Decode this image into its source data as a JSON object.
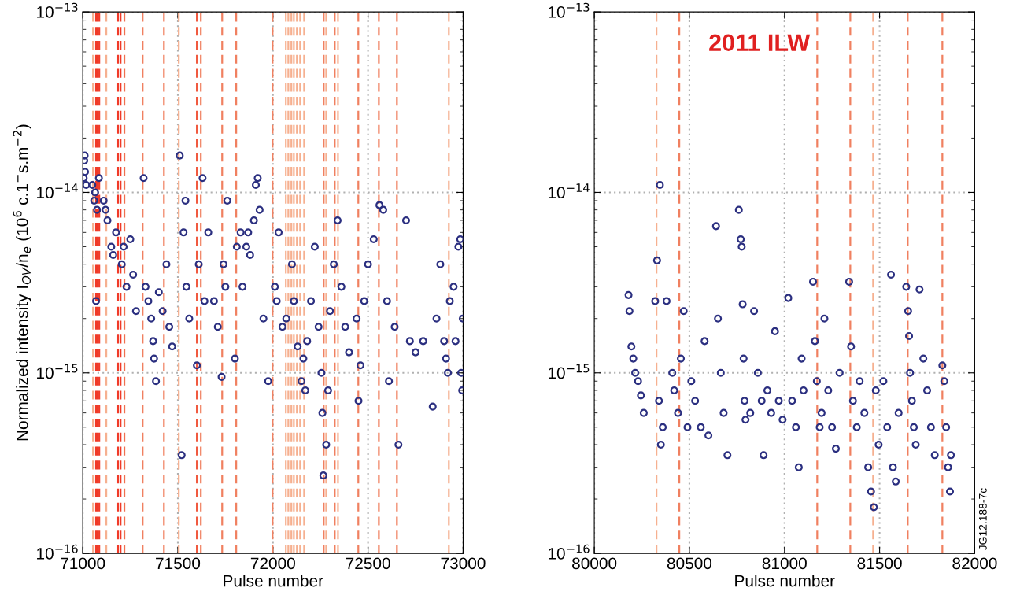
{
  "chart_data": [
    {
      "type": "scatter",
      "xlabel": "Pulse number",
      "ylabel": "Normalized intensity I$_{OV}$/n$_{e}$ (10$^{6}$ c.1$^{−}$s.m$^{−2}$)",
      "log": "y",
      "grid": true,
      "marker": "circle",
      "xlim": [
        71000,
        73000
      ],
      "xticks": [
        71000,
        71500,
        72000,
        72500,
        73000
      ],
      "ylim": [
        1e-16,
        1e-13
      ],
      "yticks": [
        {
          "value": 1e-16,
          "label": "10$^{−16}$"
        },
        {
          "value": 1e-15,
          "label": "10$^{−15}$"
        },
        {
          "value": 1e-14,
          "label": "10$^{−14}$"
        },
        {
          "value": 1e-13,
          "label": "10$^{−13}$"
        }
      ],
      "series": [
        {
          "color": "#2b2f80",
          "x": [
            71005,
            71008,
            71010,
            71012,
            71018,
            71050,
            71060,
            71065,
            71070,
            71075,
            71085,
            71110,
            71120,
            71130,
            71150,
            71160,
            71175,
            71205,
            71215,
            71230,
            71250,
            71265,
            71280,
            71320,
            71330,
            71345,
            71360,
            71370,
            71375,
            71385,
            71400,
            71420,
            71440,
            71455,
            71470,
            71510,
            71520,
            71530,
            71540,
            71545,
            71560,
            71630,
            71600,
            71610,
            71640,
            71660,
            71690,
            71710,
            71730,
            71740,
            71750,
            71760,
            71800,
            71810,
            71830,
            71840,
            71860,
            71870,
            71880,
            71900,
            71910,
            71920,
            71930,
            71950,
            71975,
            72010,
            72020,
            72030,
            72050,
            72070,
            72100,
            72110,
            72130,
            72150,
            72160,
            72170,
            72180,
            72200,
            72220,
            72240,
            72255,
            72260,
            72265,
            72280,
            72290,
            72300,
            72320,
            72340,
            72360,
            72380,
            72400,
            72440,
            72450,
            72460,
            72480,
            72500,
            72530,
            72560,
            72580,
            72600,
            72610,
            72640,
            72660,
            72700,
            72720,
            72750,
            72790,
            72840,
            72860,
            72880,
            72900,
            72910,
            72920,
            72930,
            72950,
            72960,
            72975,
            72985,
            72990,
            72995,
            72998
          ],
          "values": [
            1.2e-14,
            1.5e-14,
            1.6e-14,
            1.3e-14,
            1.1e-14,
            1.1e-14,
            9e-15,
            1e-14,
            2.5e-15,
            8e-15,
            1.2e-14,
            9e-15,
            8e-15,
            7e-15,
            5e-15,
            4.5e-15,
            6e-15,
            4e-15,
            5e-15,
            3e-15,
            5.5e-15,
            3.5e-15,
            2.2e-15,
            1.2e-14,
            3e-15,
            2.5e-15,
            2e-15,
            1.5e-15,
            1.2e-15,
            9e-16,
            2.8e-15,
            2.2e-15,
            4e-15,
            1.8e-15,
            1.4e-15,
            1.6e-14,
            3.5e-16,
            6e-15,
            9e-15,
            3e-15,
            2e-15,
            1.2e-14,
            1.1e-15,
            4e-15,
            2.5e-15,
            6e-15,
            2.5e-15,
            1.8e-15,
            9.5e-16,
            4e-15,
            3e-15,
            9e-15,
            1.2e-15,
            5e-15,
            6e-15,
            3e-15,
            5e-15,
            6e-15,
            4.5e-15,
            7e-15,
            1.1e-14,
            1.2e-14,
            8e-15,
            2e-15,
            9e-16,
            3e-15,
            2.5e-15,
            6e-15,
            1.8e-15,
            2e-15,
            4e-15,
            2.5e-15,
            1.4e-15,
            9e-16,
            1.2e-15,
            8e-16,
            1.5e-15,
            2.5e-15,
            5e-15,
            1.8e-15,
            1e-15,
            6e-16,
            2.7e-16,
            4e-16,
            8e-16,
            2.2e-15,
            4e-15,
            7e-15,
            3e-15,
            1.8e-15,
            1.3e-15,
            2e-15,
            7e-16,
            1.1e-15,
            2.5e-15,
            4e-15,
            5.5e-15,
            8.5e-15,
            8e-15,
            2.5e-15,
            9e-16,
            1.8e-15,
            4e-16,
            7e-15,
            1.5e-15,
            1.3e-15,
            1.5e-15,
            6.5e-16,
            2e-15,
            4e-15,
            1.5e-15,
            1.2e-15,
            1e-15,
            2.5e-15,
            3e-15,
            1.5e-15,
            5e-15,
            5.5e-15,
            1e-15,
            8e-16,
            2e-15
          ]
        }
      ],
      "ref_lines": [
        {
          "axis": "x",
          "value": 71054,
          "color": "#f6b090"
        },
        {
          "axis": "x",
          "value": 71070,
          "color": "#f03a28"
        },
        {
          "axis": "x",
          "value": 71078,
          "color": "#f03a28"
        },
        {
          "axis": "x",
          "value": 71087,
          "color": "#f03a28"
        },
        {
          "axis": "x",
          "value": 71124,
          "color": "#f6b090"
        },
        {
          "axis": "x",
          "value": 71186,
          "color": "#f03a28"
        },
        {
          "axis": "x",
          "value": 71199,
          "color": "#f03a28"
        },
        {
          "axis": "x",
          "value": 71219,
          "color": "#f07050"
        },
        {
          "axis": "x",
          "value": 71315,
          "color": "#f08060"
        },
        {
          "axis": "x",
          "value": 71427,
          "color": "#f08060"
        },
        {
          "axis": "x",
          "value": 71505,
          "color": "#f6b090"
        },
        {
          "axis": "x",
          "value": 71600,
          "color": "#f05a40"
        },
        {
          "axis": "x",
          "value": 71621,
          "color": "#f08060"
        },
        {
          "axis": "x",
          "value": 71733,
          "color": "#f08060"
        },
        {
          "axis": "x",
          "value": 71807,
          "color": "#f08060"
        },
        {
          "axis": "x",
          "value": 71998,
          "color": "#f08060"
        },
        {
          "axis": "x",
          "value": 72068,
          "color": "#f6b090"
        },
        {
          "axis": "x",
          "value": 72081,
          "color": "#f6b090"
        },
        {
          "axis": "x",
          "value": 72097,
          "color": "#f6b090"
        },
        {
          "axis": "x",
          "value": 72110,
          "color": "#f6b090"
        },
        {
          "axis": "x",
          "value": 72126,
          "color": "#f6b090"
        },
        {
          "axis": "x",
          "value": 72143,
          "color": "#f6b090"
        },
        {
          "axis": "x",
          "value": 72164,
          "color": "#f6b090"
        },
        {
          "axis": "x",
          "value": 72267,
          "color": "#f08060"
        },
        {
          "axis": "x",
          "value": 72280,
          "color": "#f6b090"
        },
        {
          "axis": "x",
          "value": 72325,
          "color": "#f08060"
        },
        {
          "axis": "x",
          "value": 72342,
          "color": "#f6b090"
        },
        {
          "axis": "x",
          "value": 72449,
          "color": "#f08060"
        },
        {
          "axis": "x",
          "value": 72557,
          "color": "#f08060"
        },
        {
          "axis": "x",
          "value": 72652,
          "color": "#f08060"
        },
        {
          "axis": "x",
          "value": 72925,
          "color": "#f6b090"
        }
      ]
    },
    {
      "type": "scatter",
      "title": "2011 ILW",
      "xlabel": "Pulse number",
      "log": "y",
      "grid": true,
      "marker": "circle",
      "xlim": [
        80000,
        82000
      ],
      "xticks": [
        80000,
        80500,
        81000,
        81500,
        82000
      ],
      "ylim": [
        1e-16,
        1e-13
      ],
      "yticks": [
        {
          "value": 1e-16,
          "label": "10$^{−16}$"
        },
        {
          "value": 1e-15,
          "label": "10$^{−15}$"
        },
        {
          "value": 1e-14,
          "label": "10$^{−14}$"
        },
        {
          "value": 1e-13,
          "label": "10$^{−13}$"
        }
      ],
      "annotations": [
        "JG12.188-7c"
      ],
      "series": [
        {
          "color": "#2b2f80",
          "x": [
            80180,
            80185,
            80195,
            80205,
            80215,
            80230,
            80245,
            80260,
            80330,
            80345,
            80350,
            80340,
            80360,
            80380,
            80320,
            80410,
            80420,
            80440,
            80455,
            80470,
            80490,
            80510,
            80530,
            80560,
            80580,
            80600,
            80640,
            80650,
            80665,
            80680,
            80700,
            80760,
            80770,
            80775,
            80780,
            80785,
            80790,
            80795,
            80820,
            80840,
            80860,
            80880,
            80890,
            80910,
            80930,
            80950,
            80970,
            80990,
            81020,
            81040,
            81060,
            81075,
            81090,
            81100,
            81150,
            81160,
            81170,
            81185,
            81195,
            81210,
            81230,
            81250,
            81270,
            81290,
            81340,
            81350,
            81360,
            81380,
            81395,
            81420,
            81440,
            81455,
            81470,
            81480,
            81495,
            81560,
            81520,
            81540,
            81570,
            81585,
            81600,
            81640,
            81650,
            81655,
            81660,
            81670,
            81680,
            81690,
            81710,
            81730,
            81750,
            81770,
            81790,
            81830,
            81840,
            81850,
            81860,
            81870,
            81875
          ],
          "values": [
            2.7e-15,
            2.2e-15,
            1.4e-15,
            1.2e-15,
            1e-15,
            9e-16,
            7.5e-16,
            6e-16,
            4.2e-15,
            1.1e-14,
            4e-16,
            7e-16,
            5e-16,
            2.5e-15,
            2.5e-15,
            1e-15,
            8e-16,
            6e-16,
            1.2e-15,
            2.2e-15,
            5e-16,
            9e-16,
            7e-16,
            5e-16,
            1.5e-15,
            4.5e-16,
            6.5e-15,
            2e-15,
            1e-15,
            6e-16,
            3.5e-16,
            8e-15,
            5.5e-15,
            5e-15,
            2.4e-15,
            1.2e-15,
            7e-16,
            5.5e-16,
            6e-16,
            2.2e-15,
            1e-15,
            7e-16,
            3.5e-16,
            8e-16,
            6e-16,
            1.7e-15,
            7e-16,
            5.5e-16,
            2.6e-15,
            7e-16,
            5e-16,
            3e-16,
            1.2e-15,
            8e-16,
            3.2e-15,
            1.5e-15,
            9e-16,
            5e-16,
            6e-16,
            2e-15,
            8e-16,
            5e-16,
            3.8e-16,
            1e-15,
            3.2e-15,
            1.4e-15,
            7e-16,
            5e-16,
            9e-16,
            6e-16,
            3e-16,
            2.2e-16,
            1.8e-16,
            8e-16,
            4e-16,
            3.5e-15,
            9e-16,
            5e-16,
            3e-16,
            2.5e-16,
            6e-16,
            3e-15,
            2.2e-15,
            1.6e-15,
            1e-15,
            7e-16,
            5e-16,
            4e-16,
            2.9e-15,
            1.2e-15,
            8e-16,
            5e-16,
            3.5e-16,
            1.1e-15,
            9e-16,
            5e-16,
            3e-16,
            2.2e-16,
            3.5e-16
          ]
        }
      ],
      "ref_lines": [
        {
          "axis": "x",
          "value": 80327,
          "color": "#f6b090"
        },
        {
          "axis": "x",
          "value": 80447,
          "color": "#f08060"
        },
        {
          "axis": "x",
          "value": 81172,
          "color": "#f08060"
        },
        {
          "axis": "x",
          "value": 81346,
          "color": "#f08060"
        },
        {
          "axis": "x",
          "value": 81466,
          "color": "#f6b090"
        },
        {
          "axis": "x",
          "value": 81648,
          "color": "#f08060"
        },
        {
          "axis": "x",
          "value": 81830,
          "color": "#f08060"
        }
      ]
    }
  ]
}
